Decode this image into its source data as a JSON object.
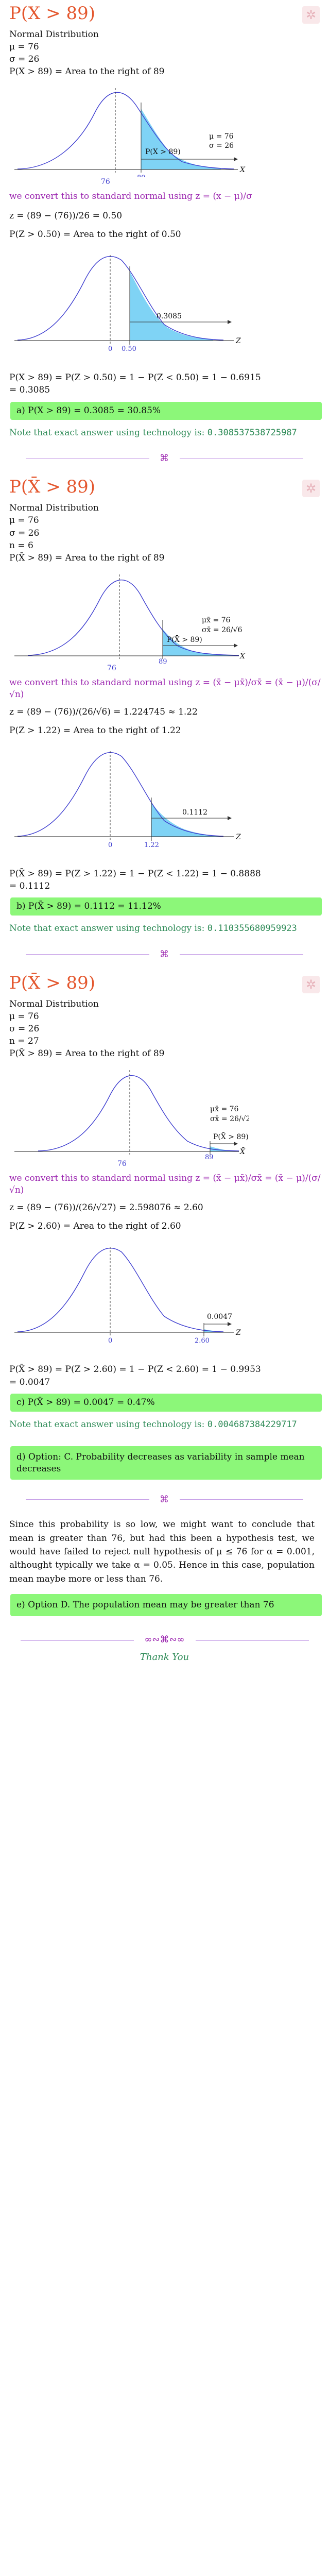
{
  "section1": {
    "title": "P(X > 89)",
    "lines": [
      "Normal Distribution",
      "μ = 76",
      "σ = 26",
      "P(X > 89) = Area to the right of 89"
    ],
    "chart1": {
      "area_label": "P(X > 89)",
      "mu_label": "μ = 76",
      "sigma_label": "σ = 26",
      "x_mark": "89",
      "mean_label": "76",
      "axis_label": "X"
    },
    "convert": "we convert this to standard normal using z = (x − μ)/σ",
    "zcalc": "z = (89 − (76))/26 = 0.50",
    "pz": "P(Z > 0.50) = Area to the right of 0.50",
    "chart2": {
      "area_label": "0.3085",
      "z_mark": "0.50",
      "zero_label": "0",
      "axis_label": "Z"
    },
    "calc": "P(X > 89) = P(Z > 0.50) = 1 − P(Z < 0.50) = 1 − 0.6915",
    "calc2": "= 0.3085",
    "answer": "a) P(X > 89) = 0.3085 = 30.85%",
    "note": "Note that exact answer using technology is:",
    "note_value": "0.308537538725987"
  },
  "section2": {
    "title": "P(X̄ > 89)",
    "lines": [
      "Normal Distribution",
      "μ = 76",
      "σ = 26",
      "n = 6",
      "P(X̄ > 89) = Area to the right of 89"
    ],
    "chart1": {
      "area_label": "P(X̄ > 89)",
      "mu_label": "μx̄ = 76",
      "sigma_label": "σx̄ = 26/√6",
      "x_mark": "89",
      "mean_label": "76",
      "axis_label": "X̄"
    },
    "convert": "we convert this to standard normal using z = (x̄ − μx̄)/σx̄ = (x̄ − μ)/(σ/√n)",
    "zcalc": "z = (89 − (76))/(26/√6) = 1.224745 ≈ 1.22",
    "pz": "P(Z > 1.22) = Area to the right of 1.22",
    "chart2": {
      "area_label": "0.1112",
      "z_mark": "1.22",
      "zero_label": "0",
      "axis_label": "Z"
    },
    "calc": "P(X̄ > 89) = P(Z > 1.22) = 1 − P(Z < 1.22) = 1 − 0.8888",
    "calc2": "= 0.1112",
    "answer": "b) P(X̄ > 89) = 0.1112 = 11.12%",
    "note": "Note that exact answer using technology is:",
    "note_value": "0.110355680959923"
  },
  "section3": {
    "title": "P(X̄ > 89)",
    "lines": [
      "Normal Distribution",
      "μ = 76",
      "σ = 26",
      "n = 27",
      "P(X̄ > 89) = Area to the right of 89"
    ],
    "chart1": {
      "area_label": "P(X̄ > 89)",
      "mu_label": "μx̄ = 76",
      "sigma_label": "σx̄ = 26/√27",
      "x_mark": "89",
      "mean_label": "76",
      "axis_label": "X̄"
    },
    "convert": "we convert this to standard normal using z = (x̄ − μx̄)/σx̄ = (x̄ − μ)/(σ/√n)",
    "zcalc": "z = (89 − (76))/(26/√27) = 2.598076 ≈ 2.60",
    "pz": "P(Z > 2.60) = Area to the right of 2.60",
    "chart2": {
      "area_label": "0.0047",
      "z_mark": "2.60",
      "zero_label": "0",
      "axis_label": "Z"
    },
    "calc": "P(X̄ > 89) = P(Z > 2.60) = 1 − P(Z < 2.60) = 1 − 0.9953",
    "calc2": "= 0.0047",
    "answer": "c) P(X̄ > 89) = 0.0047 = 0.47%",
    "note": "Note that exact answer using technology is:",
    "note_value": "0.004687384229717"
  },
  "option_d": "d) Option: C. Probability decreases as variability in sample mean decreases",
  "paragraph": "Since this probability is so low, we might want to conclude that mean is greater than 76, but had this been a hypothesis test, we would have failed to reject null hypothesis of μ ≤ 76 for α = 0.001, althought typically we take α = 0.05. Hence in this case, population mean maybe more or less than 76.",
  "option_e": "e) Option D. The population mean may be greater than 76",
  "thanks": "Thank You",
  "colors": {
    "title": "#e4572e",
    "purple": "#9c27b0",
    "green": "#2e8b57",
    "answer_bg": "#8cf779",
    "curve": "#3f3fd0",
    "shade": "#7fd3f5"
  }
}
